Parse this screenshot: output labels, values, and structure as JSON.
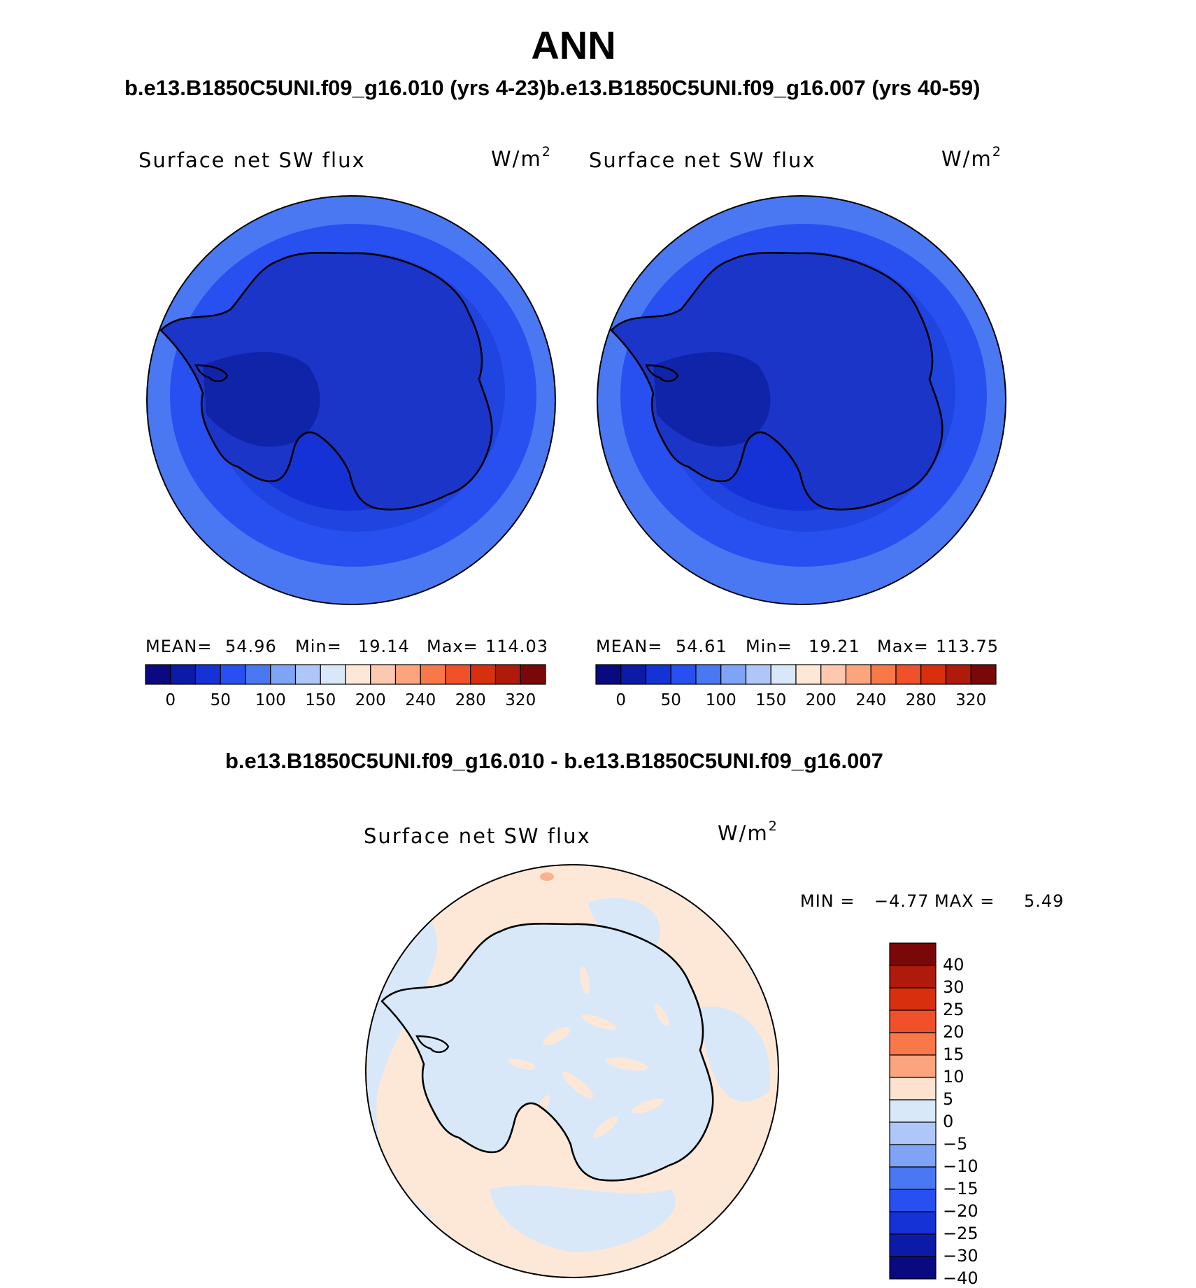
{
  "title": "ANN",
  "top_subtitle": "b.e13.B1850C5UNI.f09_g16.010 (yrs 4-23)b.e13.B1850C5UNI.f09_g16.007 (yrs 40-59)",
  "diff_subtitle": "b.e13.B1850C5UNI.f09_g16.010 - b.e13.B1850C5UNI.f09_g16.007",
  "panels": [
    {
      "variable": "Surface net SW flux",
      "units_base": "W/m",
      "units_exp": "2",
      "mean_label": "MEAN=",
      "mean_value": "54.96",
      "min_label": "Min=",
      "min_value": "19.14",
      "max_label": "Max=",
      "max_value": "114.03"
    },
    {
      "variable": "Surface net SW flux",
      "units_base": "W/m",
      "units_exp": "2",
      "mean_label": "MEAN=",
      "mean_value": "54.61",
      "min_label": "Min=",
      "min_value": "19.21",
      "max_label": "Max=",
      "max_value": "113.75"
    }
  ],
  "abs_colorbar": {
    "colors": [
      "#0a0a80",
      "#0c1aa8",
      "#1432d6",
      "#2850f0",
      "#4a78f2",
      "#7fa4f5",
      "#aec6f8",
      "#d8e8f8",
      "#fde8d8",
      "#fcc8b0",
      "#fba47e",
      "#f8784a",
      "#f0502a",
      "#d8300e",
      "#b01a0a",
      "#7a0808"
    ],
    "tick_labels": [
      "0",
      "50",
      "100",
      "150",
      "200",
      "240",
      "280",
      "320"
    ]
  },
  "diff_panel": {
    "variable": "Surface net SW flux",
    "units_base": "W/m",
    "units_exp": "2",
    "min_label": "MIN =",
    "min_value": "−4.77",
    "max_label": "MAX =",
    "max_value": "5.49"
  },
  "diff_colorbar": {
    "colors": [
      "#7a0808",
      "#b01a0a",
      "#d8300e",
      "#f0502a",
      "#f8784a",
      "#fba47e",
      "#fde2d0",
      "#d8e8f8",
      "#aec6f8",
      "#7fa4f5",
      "#4a78f2",
      "#2850f0",
      "#1432d6",
      "#0c1aa8",
      "#0a0a80"
    ],
    "tick_labels": [
      "40",
      "30",
      "25",
      "20",
      "15",
      "10",
      "5",
      "0",
      "−5",
      "−10",
      "−15",
      "−20",
      "−25",
      "−30",
      "−40"
    ]
  },
  "map_colors": {
    "ocean_outer": "#4a78f2",
    "ocean_mid": "#2850f0",
    "ocean_inner": "#1432d6",
    "continent": "#1a35c8",
    "continent_dark": "#0f24a8",
    "diff_positive": "#fde8d8",
    "diff_negative": "#d8e8f8",
    "coast": "#000000"
  }
}
